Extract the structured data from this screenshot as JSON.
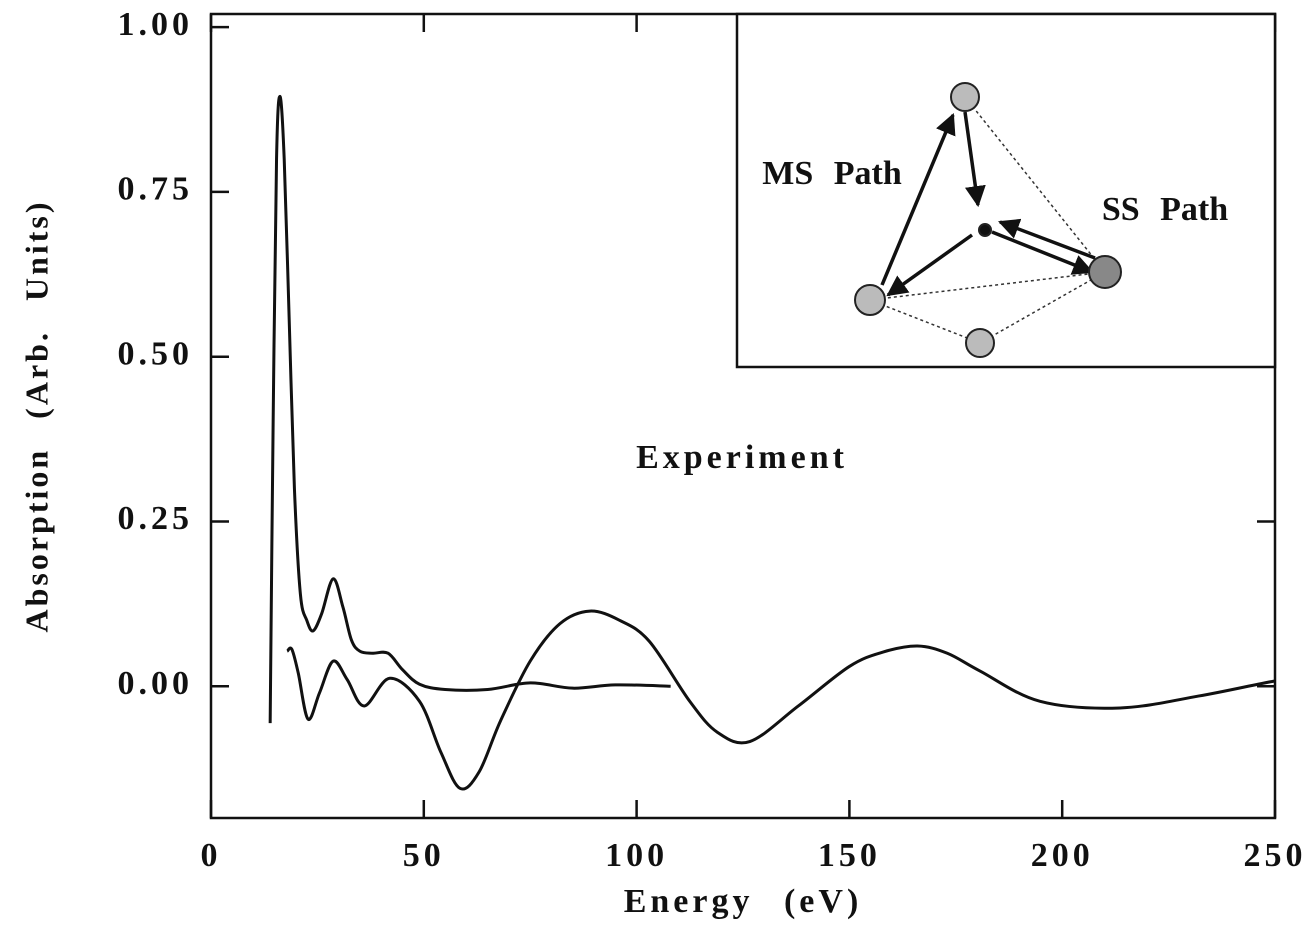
{
  "chart_data": {
    "type": "line",
    "xlabel": "Energy (eV)",
    "ylabel": "Absorption (Arb. Units)",
    "xlim": [
      0,
      250
    ],
    "ylim": [
      -0.2,
      1.02
    ],
    "xticks": [
      0,
      50,
      100,
      150,
      200,
      250
    ],
    "yticks": [
      {
        "value": 0,
        "label": "0.00"
      },
      {
        "value": 0.25,
        "label": "0.25"
      },
      {
        "value": 0.5,
        "label": "0.50"
      },
      {
        "value": 0.75,
        "label": "0.75"
      },
      {
        "value": 1,
        "label": "1.00"
      }
    ],
    "series": [
      {
        "color": "#111111",
        "x": [
          13.9,
          14.6,
          15.4,
          16.2,
          17.2,
          18.4,
          19.6,
          21,
          22.5,
          24,
          26,
          28.7,
          31,
          33,
          35,
          38,
          41.6,
          45,
          49,
          55,
          65,
          75,
          85,
          95,
          108
        ],
        "values": [
          -0.056,
          0.4,
          0.8,
          0.895,
          0.8,
          0.55,
          0.3,
          0.14,
          0.1,
          0.084,
          0.11,
          0.163,
          0.12,
          0.07,
          0.053,
          0.05,
          0.05,
          0.025,
          0.003,
          -0.005,
          -0.005,
          0.005,
          -0.003,
          0.002,
          0.0
        ]
      },
      {
        "color": "#111111",
        "x": [
          17.9,
          19,
          20.5,
          22.8,
          25.5,
          28.7,
          32,
          36,
          42,
          49,
          54,
          58.5,
          63,
          68,
          75,
          82,
          89,
          96,
          103,
          112.5,
          119,
          126.6,
          138,
          150,
          158,
          166,
          173,
          180.7,
          194.8,
          213.6,
          232,
          246,
          250
        ],
        "values": [
          0.053,
          0.056,
          0.02,
          -0.05,
          -0.01,
          0.038,
          0.01,
          -0.03,
          0.012,
          -0.023,
          -0.1,
          -0.155,
          -0.13,
          -0.053,
          0.038,
          0.095,
          0.114,
          0.1,
          0.068,
          -0.023,
          -0.07,
          -0.084,
          -0.03,
          0.03,
          0.052,
          0.061,
          0.05,
          0.023,
          -0.023,
          -0.033,
          -0.015,
          0.003,
          0.008
        ]
      }
    ],
    "annotations": [
      "Experiment"
    ],
    "inset": {
      "labels": [
        "MS Path",
        "SS Path"
      ]
    }
  }
}
